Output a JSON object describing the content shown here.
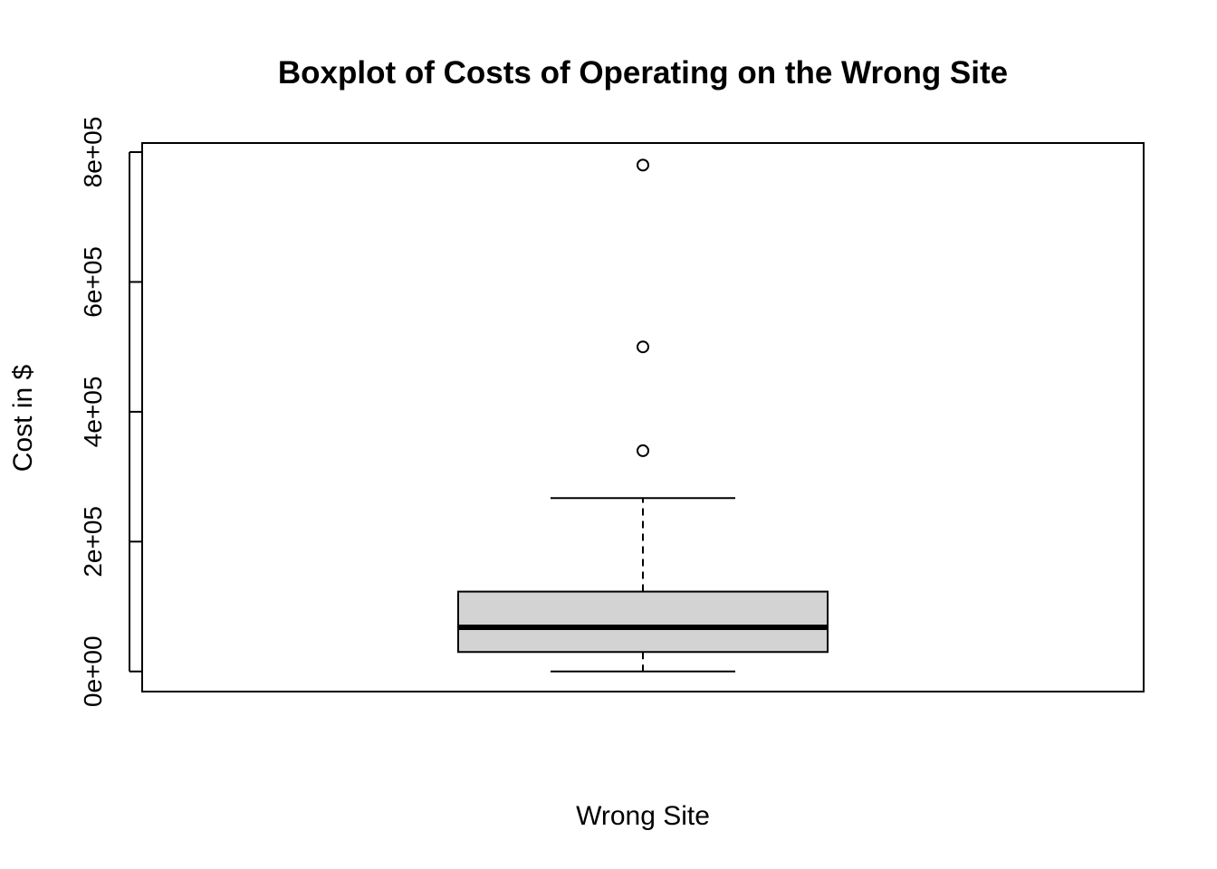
{
  "chart_data": {
    "type": "boxplot",
    "title": "Boxplot of Costs of Operating on the Wrong Site",
    "xlabel": "Wrong Site",
    "ylabel": "Cost in $",
    "categories": [
      "Wrong Site"
    ],
    "yticks": [
      0,
      200000,
      400000,
      600000,
      800000
    ],
    "ytick_labels": [
      "0e+00",
      "2e+05",
      "4e+05",
      "6e+05",
      "8e+05"
    ],
    "ylim": [
      -31000,
      814000
    ],
    "grid": false,
    "box": {
      "whisker_low": 0,
      "q1": 30000,
      "median": 68000,
      "q3": 123000,
      "whisker_high": 267000,
      "outliers": [
        340000,
        500000,
        780000
      ]
    },
    "colors": {
      "box_fill": "#d3d3d3",
      "line": "#000000",
      "background": "#ffffff"
    }
  }
}
